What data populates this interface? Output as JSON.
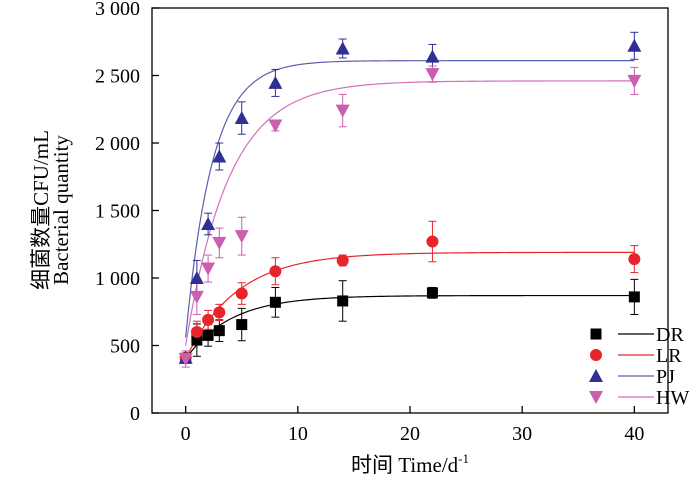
{
  "chart_data": {
    "type": "scatter",
    "xlabel": "时间 Time/d",
    "xlabel_sup": "-1",
    "ylabel_cn": "细菌数量CFU/mL",
    "ylabel_en": "Bacterial quantity",
    "xlim": [
      -3,
      43
    ],
    "ylim": [
      0,
      3000
    ],
    "xticks": [
      0,
      10,
      20,
      30,
      40
    ],
    "xtick_labels": [
      "0",
      "10",
      "20",
      "30",
      "40"
    ],
    "yticks": [
      0,
      500,
      1000,
      1500,
      2000,
      2500,
      3000
    ],
    "ytick_labels": [
      "0",
      "500",
      "1 000",
      "1 500",
      "2 000",
      "2 500",
      "3 000"
    ],
    "legend_position": "bottom-right",
    "series": [
      {
        "name": "DR",
        "marker": "square",
        "color": "#000000",
        "line_color": "#000000",
        "x": [
          0,
          1,
          2,
          3,
          5,
          8,
          14,
          22,
          40
        ],
        "y": [
          405,
          540,
          575,
          610,
          655,
          820,
          830,
          890,
          860
        ],
        "err": [
          30,
          120,
          80,
          80,
          120,
          110,
          150,
          40,
          130
        ],
        "fit": {
          "y0": 400,
          "ymax": 870,
          "k": 0.25
        }
      },
      {
        "name": "LR",
        "marker": "circle",
        "color": "#e8242b",
        "line_color": "#e8242b",
        "x": [
          0,
          1,
          2,
          3,
          5,
          8,
          14,
          22,
          40
        ],
        "y": [
          410,
          600,
          690,
          745,
          885,
          1050,
          1130,
          1270,
          1140
        ],
        "err": [
          30,
          80,
          70,
          60,
          80,
          100,
          40,
          150,
          100
        ],
        "fit": {
          "y0": 400,
          "ymax": 1190,
          "k": 0.22
        }
      },
      {
        "name": "PJ",
        "marker": "triangle-up",
        "color": "#2e3192",
        "line_color": "#5a5fb0",
        "x": [
          0,
          1,
          2,
          3,
          5,
          8,
          14,
          22,
          40
        ],
        "y": [
          410,
          1000,
          1400,
          1900,
          2185,
          2445,
          2700,
          2640,
          2720
        ],
        "err": [
          30,
          130,
          80,
          100,
          120,
          100,
          70,
          90,
          100
        ],
        "fit": {
          "y0": 560,
          "ymax": 2610,
          "k": 0.42
        }
      },
      {
        "name": "HW",
        "marker": "triangle-down",
        "color": "#c95fae",
        "line_color": "#d36fbe",
        "x": [
          0,
          1,
          2,
          3,
          5,
          8,
          14,
          22,
          40
        ],
        "y": [
          400,
          860,
          1070,
          1260,
          1310,
          2130,
          2240,
          2510,
          2460
        ],
        "err": [
          60,
          130,
          100,
          110,
          140,
          40,
          120,
          60,
          100
        ],
        "fit": {
          "y0": 500,
          "ymax": 2460,
          "k": 0.26
        }
      }
    ]
  }
}
